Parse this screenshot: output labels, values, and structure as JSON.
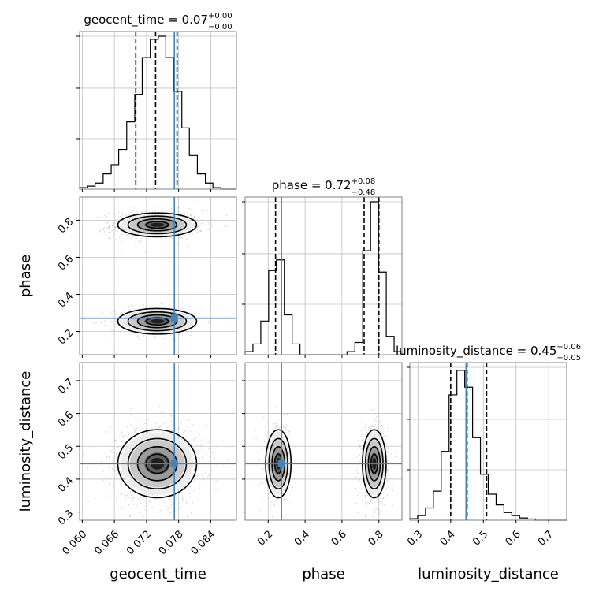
{
  "chart_data": {
    "type": "corner",
    "colors": {
      "truth": "#4682b4",
      "hist": "#000000",
      "grid": "#c0c0c0",
      "frame": "#808080"
    },
    "parameters": [
      "geocent_time",
      "phase",
      "luminosity_distance"
    ],
    "titles": [
      {
        "name": "geocent_time",
        "eq": " = 0.07",
        "sup": "+0.00",
        "sub": "−0.00"
      },
      {
        "name": "phase",
        "eq": " = 0.72",
        "sup": "+0.08",
        "sub": "−0.48"
      },
      {
        "name": "luminosity_distance",
        "eq": " = 0.45",
        "sup": "+0.06",
        "sub": "−0.05"
      }
    ],
    "axis_labels": {
      "x": [
        "geocent_time",
        "phase",
        "luminosity_distance"
      ],
      "y": [
        "phase",
        "luminosity_distance"
      ]
    },
    "ranges": [
      [
        0.0595,
        0.0888
      ],
      [
        0.075,
        0.925
      ],
      [
        0.275,
        0.755
      ]
    ],
    "ticks": [
      {
        "values": [
          0.06,
          0.066,
          0.072,
          0.078,
          0.084
        ],
        "labels": [
          "0.060",
          "0.066",
          "0.072",
          "0.078",
          "0.084"
        ]
      },
      {
        "values": [
          0.2,
          0.4,
          0.6,
          0.8
        ],
        "labels": [
          "0.2",
          "0.4",
          "0.6",
          "0.8"
        ]
      },
      {
        "values": [
          0.3,
          0.4,
          0.5,
          0.6,
          0.7
        ],
        "labels": [
          "0.3",
          "0.4",
          "0.5",
          "0.6",
          "0.7"
        ]
      }
    ],
    "truths": [
      0.0772,
      0.272,
      0.447
    ],
    "quantiles": [
      [
        0.07,
        0.0737,
        0.0777
      ],
      [
        0.24,
        0.72,
        0.8
      ],
      [
        0.4,
        0.45,
        0.51
      ]
    ],
    "hist_max": [
      1.0,
      1.0,
      1.0
    ],
    "histograms": [
      {
        "edges": [
          0.0595,
          0.061,
          0.0624,
          0.0639,
          0.0654,
          0.0668,
          0.0683,
          0.0698,
          0.0712,
          0.0727,
          0.0742,
          0.0756,
          0.0771,
          0.0786,
          0.08,
          0.0815,
          0.083,
          0.0844,
          0.0859,
          0.0874,
          0.0888
        ],
        "counts": [
          0.01,
          0.02,
          0.04,
          0.1,
          0.16,
          0.26,
          0.44,
          0.62,
          0.86,
          0.98,
          1.0,
          0.86,
          0.64,
          0.4,
          0.22,
          0.1,
          0.04,
          0.01,
          0.0,
          0.0
        ]
      },
      {
        "edges": [
          0.075,
          0.1175,
          0.16,
          0.2025,
          0.245,
          0.2875,
          0.33,
          0.3725,
          0.415,
          0.4575,
          0.5,
          0.5425,
          0.585,
          0.6275,
          0.67,
          0.7125,
          0.755,
          0.7975,
          0.84,
          0.8825,
          0.925
        ],
        "counts": [
          0.02,
          0.07,
          0.22,
          0.55,
          0.62,
          0.26,
          0.07,
          0.0,
          0.0,
          0.0,
          0.0,
          0.0,
          0.0,
          0.02,
          0.08,
          0.68,
          1.0,
          0.54,
          0.12,
          0.02
        ]
      },
      {
        "edges": [
          0.275,
          0.299,
          0.323,
          0.347,
          0.371,
          0.395,
          0.419,
          0.443,
          0.467,
          0.491,
          0.515,
          0.539,
          0.563,
          0.587,
          0.611,
          0.635,
          0.659,
          0.683,
          0.707,
          0.731,
          0.755
        ],
        "counts": [
          0.01,
          0.03,
          0.08,
          0.19,
          0.45,
          0.82,
          0.98,
          0.87,
          0.54,
          0.3,
          0.17,
          0.1,
          0.05,
          0.03,
          0.015,
          0.008,
          0.0,
          0.0,
          0.0,
          0.0
        ]
      }
    ],
    "blobs": [
      {
        "x_param": 0,
        "y_param": 1,
        "cx": 0.074,
        "cy": 0.775,
        "sx": 0.0032,
        "sy": 0.028,
        "w": 0.66
      },
      {
        "x_param": 0,
        "y_param": 1,
        "cx": 0.074,
        "cy": 0.255,
        "sx": 0.0032,
        "sy": 0.03,
        "w": 0.34
      },
      {
        "x_param": 0,
        "y_param": 2,
        "cx": 0.074,
        "cy": 0.447,
        "sx": 0.0032,
        "sy": 0.045,
        "w": 1.0
      },
      {
        "x_param": 1,
        "y_param": 2,
        "cx": 0.255,
        "cy": 0.447,
        "sx": 0.03,
        "sy": 0.045,
        "w": 0.34
      },
      {
        "x_param": 1,
        "y_param": 2,
        "cx": 0.775,
        "cy": 0.447,
        "sx": 0.028,
        "sy": 0.045,
        "w": 0.66
      }
    ]
  }
}
